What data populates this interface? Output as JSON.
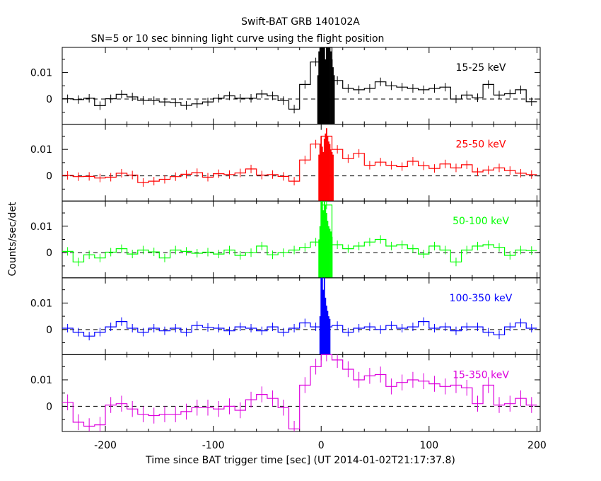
{
  "chart_data": {
    "type": "line",
    "title": "Swift-BAT GRB 140102A",
    "subtitle": "SN=5 or 10 sec binning light curve using the flight position",
    "xlabel": "Time since BAT trigger time [sec] (UT 2014-01-02T21:17:37.8)",
    "ylabel": "Counts/sec/det",
    "xlim": [
      -240,
      203
    ],
    "ylim": [
      -0.0095,
      0.0195
    ],
    "x_ticks": [
      -200,
      -100,
      0,
      100,
      200
    ],
    "x_tick_labels": [
      "-200",
      "-100",
      "0",
      "100",
      "200"
    ],
    "y_ticks": [
      0,
      0.01
    ],
    "y_tick_labels": [
      "0",
      "0.01"
    ],
    "grid": false,
    "zero_line": "dashed",
    "panels": [
      {
        "name": "15-25 keV",
        "color": "#000000",
        "bins_x": [
          -235,
          -225,
          -215,
          -205,
          -195,
          -185,
          -175,
          -165,
          -155,
          -145,
          -135,
          -125,
          -115,
          -105,
          -95,
          -85,
          -75,
          -65,
          -55,
          -45,
          -35,
          -25,
          -15,
          -5,
          5,
          15,
          25,
          35,
          45,
          55,
          65,
          75,
          85,
          95,
          105,
          115,
          125,
          135,
          145,
          155,
          165,
          175,
          185,
          195
        ],
        "bins_y": [
          0.0001,
          -0.0002,
          0.0003,
          -0.0025,
          0.0001,
          0.0018,
          0.0008,
          -0.0005,
          -0.0006,
          -0.0011,
          -0.0013,
          -0.0024,
          -0.0018,
          -0.0011,
          0.0003,
          0.0012,
          0.0003,
          0.0003,
          0.0019,
          0.0012,
          -0.0006,
          -0.0038,
          0.0055,
          0.014,
          0.03,
          0.007,
          0.004,
          0.0035,
          0.004,
          0.0065,
          0.005,
          0.0045,
          0.004,
          0.0035,
          0.004,
          0.0045,
          0.0,
          0.0015,
          0.0005,
          0.0055,
          0.0015,
          0.002,
          0.0035,
          -0.001
        ],
        "burst_x": [
          -3,
          -2,
          -1,
          0,
          1,
          2,
          3,
          4,
          5,
          6,
          7,
          8,
          9,
          10,
          11,
          12
        ],
        "burst_y": [
          0.009,
          0.018,
          0.028,
          0.035,
          0.03,
          0.026,
          0.02,
          0.015,
          0.022,
          0.028,
          0.025,
          0.02,
          0.018,
          0.015,
          0.012,
          0.009
        ]
      },
      {
        "name": "25-50 keV",
        "color": "#ff0000",
        "bins_x": [
          -235,
          -225,
          -215,
          -205,
          -195,
          -185,
          -175,
          -165,
          -155,
          -145,
          -135,
          -125,
          -115,
          -105,
          -95,
          -85,
          -75,
          -65,
          -55,
          -45,
          -35,
          -25,
          -15,
          -5,
          5,
          15,
          25,
          35,
          45,
          55,
          65,
          75,
          85,
          95,
          105,
          115,
          125,
          135,
          145,
          155,
          165,
          175,
          185,
          195
        ],
        "bins_y": [
          0.0002,
          -0.0003,
          -0.0002,
          -0.0008,
          -0.0005,
          0.001,
          0.0003,
          -0.0025,
          -0.002,
          -0.0013,
          -0.0003,
          0.0006,
          0.0012,
          -0.0005,
          0.0008,
          0.0005,
          0.0011,
          0.0026,
          0.0003,
          0.0005,
          -0.0002,
          -0.002,
          0.006,
          0.012,
          0.015,
          0.01,
          0.0065,
          0.0085,
          0.004,
          0.0052,
          0.004,
          0.0035,
          0.0055,
          0.0038,
          0.0028,
          0.0045,
          0.003,
          0.0042,
          0.0015,
          0.0022,
          0.003,
          0.002,
          0.001,
          0.0005
        ],
        "burst_x": [
          -2,
          -1,
          0,
          1,
          2,
          3,
          4,
          5,
          6,
          7,
          8,
          9,
          10,
          11
        ],
        "burst_y": [
          0.008,
          0.012,
          0.015,
          0.011,
          0.009,
          0.014,
          0.016,
          0.018,
          0.015,
          0.013,
          0.012,
          0.01,
          0.009,
          0.008
        ]
      },
      {
        "name": "50-100 keV",
        "color": "#00ff00",
        "bins_x": [
          -235,
          -225,
          -215,
          -205,
          -195,
          -185,
          -175,
          -165,
          -155,
          -145,
          -135,
          -125,
          -115,
          -105,
          -95,
          -85,
          -75,
          -65,
          -55,
          -45,
          -35,
          -25,
          -15,
          -5,
          5,
          15,
          25,
          35,
          45,
          55,
          65,
          75,
          85,
          95,
          105,
          115,
          125,
          135,
          145,
          155,
          165,
          175,
          185,
          195
        ],
        "bins_y": [
          0.0005,
          -0.0035,
          -0.0008,
          -0.002,
          0.0002,
          0.0015,
          -0.0005,
          0.001,
          0.0003,
          -0.002,
          0.001,
          0.0005,
          -0.0002,
          0.0002,
          -0.0005,
          0.001,
          -0.001,
          0.0,
          0.0025,
          -0.0008,
          0.0,
          0.001,
          0.002,
          0.004,
          0.018,
          0.003,
          0.0015,
          0.0025,
          0.004,
          0.005,
          0.0025,
          0.003,
          0.0015,
          -0.0005,
          0.0025,
          0.001,
          -0.0035,
          0.001,
          0.0025,
          0.003,
          0.002,
          -0.001,
          0.001,
          0.0008
        ],
        "burst_x": [
          -2,
          -1,
          0,
          1,
          2,
          3,
          4,
          5,
          6,
          7,
          8,
          9,
          10
        ],
        "burst_y": [
          0.005,
          0.01,
          0.0195,
          0.0195,
          0.016,
          0.0195,
          0.018,
          0.015,
          0.012,
          0.01,
          0.009,
          0.008,
          0.006
        ]
      },
      {
        "name": "100-350 keV",
        "color": "#0000ff",
        "bins_x": [
          -235,
          -225,
          -215,
          -205,
          -195,
          -185,
          -175,
          -165,
          -155,
          -145,
          -135,
          -125,
          -115,
          -105,
          -95,
          -85,
          -75,
          -65,
          -55,
          -45,
          -35,
          -25,
          -15,
          -5,
          5,
          15,
          25,
          35,
          45,
          55,
          65,
          75,
          85,
          95,
          105,
          115,
          125,
          135,
          145,
          155,
          165,
          175,
          185,
          195
        ],
        "bins_y": [
          0.0005,
          -0.001,
          -0.0025,
          -0.001,
          0.001,
          0.003,
          0.0005,
          -0.001,
          0.0005,
          -0.0005,
          0.0005,
          -0.001,
          0.0015,
          0.0008,
          0.0005,
          -0.0005,
          0.001,
          0.0005,
          -0.0005,
          0.001,
          -0.001,
          0.0005,
          0.0025,
          0.001,
          0.001,
          0.0015,
          -0.001,
          0.0005,
          0.001,
          0.0,
          0.0015,
          0.0005,
          0.001,
          0.003,
          0.0005,
          0.001,
          -0.0005,
          0.001,
          0.001,
          -0.001,
          -0.002,
          0.001,
          0.0025,
          0.0005
        ],
        "burst_x": [
          -1,
          0,
          1,
          2,
          3,
          4,
          5,
          6,
          7,
          8
        ],
        "burst_y": [
          0.005,
          0.0195,
          0.0195,
          0.015,
          0.0195,
          0.012,
          0.009,
          0.007,
          0.005,
          0.004
        ]
      },
      {
        "name": "15-350 keV",
        "color": "#dd00dd",
        "bins_x": [
          -235,
          -225,
          -215,
          -205,
          -195,
          -185,
          -175,
          -165,
          -155,
          -145,
          -135,
          -125,
          -115,
          -105,
          -95,
          -85,
          -75,
          -65,
          -55,
          -45,
          -35,
          -25,
          -15,
          -5,
          5,
          15,
          25,
          35,
          45,
          55,
          65,
          75,
          85,
          95,
          105,
          115,
          125,
          135,
          145,
          155,
          165,
          175,
          185,
          195
        ],
        "bins_y": [
          0.0015,
          -0.006,
          -0.0075,
          -0.007,
          0.0005,
          0.001,
          -0.001,
          -0.003,
          -0.0035,
          -0.003,
          -0.003,
          -0.002,
          -0.0005,
          -0.0005,
          -0.001,
          0.0,
          -0.0015,
          0.0025,
          0.0045,
          0.003,
          -0.0005,
          -0.0085,
          0.008,
          0.015,
          0.02,
          0.0175,
          0.014,
          0.01,
          0.0115,
          0.012,
          0.0075,
          0.009,
          0.01,
          0.0095,
          0.0085,
          0.0075,
          0.008,
          0.007,
          0.001,
          0.008,
          0.0005,
          0.001,
          0.003,
          0.0005
        ],
        "burst_x": [],
        "burst_y": []
      }
    ]
  }
}
